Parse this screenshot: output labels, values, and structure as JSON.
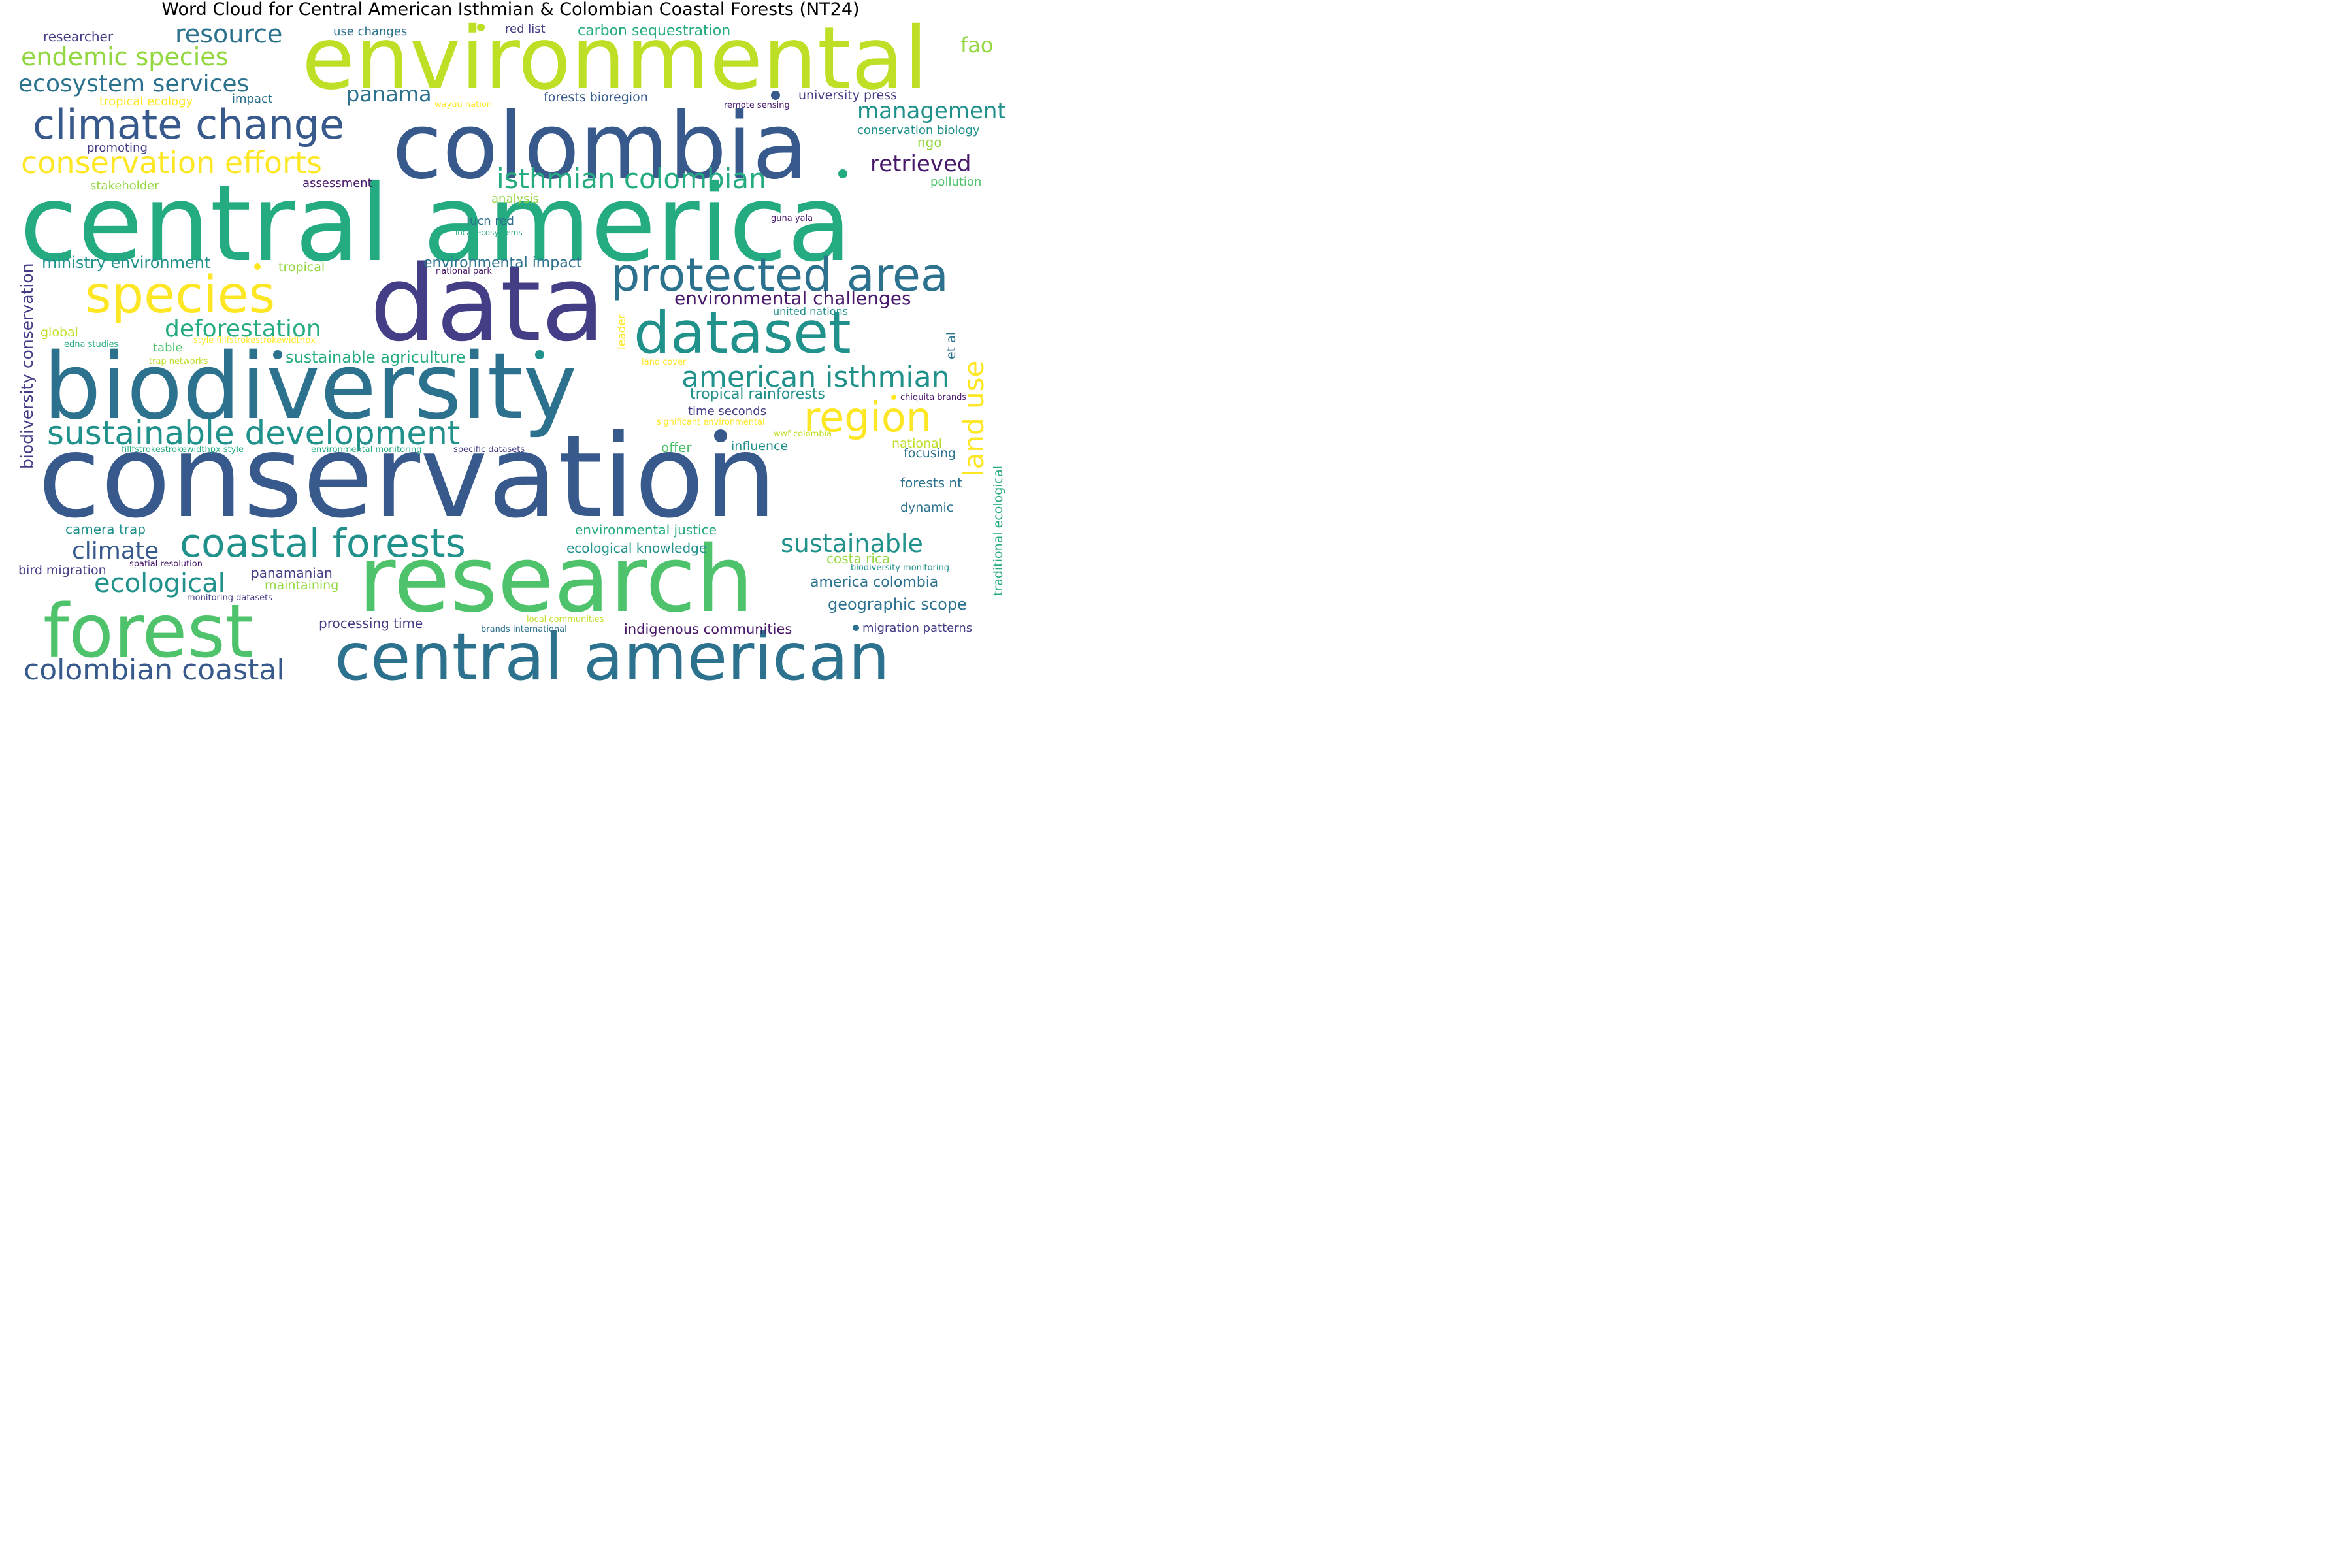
{
  "title": "Word Cloud for Central American Isthmian & Colombian Coastal Forests (NT24)",
  "colors": {
    "dark_purple": "#48186a",
    "indigo": "#433e85",
    "slate_blue": "#38598c",
    "blue_teal": "#2c728e",
    "teal": "#21918c",
    "sea_green": "#25ab82",
    "green": "#4ec36b",
    "lime": "#93d741",
    "yellow_green": "#bddf26",
    "yellow": "#fde725"
  },
  "words": [
    {
      "text": "environmental",
      "color": "yellow_green"
    },
    {
      "text": "colombia",
      "color": "slate_blue"
    },
    {
      "text": "central america",
      "color": "sea_green"
    },
    {
      "text": "data",
      "color": "indigo"
    },
    {
      "text": "biodiversity",
      "color": "blue_teal"
    },
    {
      "text": "conservation",
      "color": "slate_blue"
    },
    {
      "text": "research",
      "color": "green"
    },
    {
      "text": "forest",
      "color": "green"
    },
    {
      "text": "central american",
      "color": "blue_teal"
    },
    {
      "text": "dataset",
      "color": "teal"
    },
    {
      "text": "protected area",
      "color": "blue_teal"
    },
    {
      "text": "species",
      "color": "yellow"
    },
    {
      "text": "climate change",
      "color": "slate_blue"
    },
    {
      "text": "sustainable development",
      "color": "teal"
    },
    {
      "text": "coastal forests",
      "color": "teal"
    },
    {
      "text": "region",
      "color": "yellow"
    },
    {
      "text": "conservation efforts",
      "color": "yellow"
    },
    {
      "text": "isthmian colombian",
      "color": "sea_green"
    },
    {
      "text": "american isthmian",
      "color": "teal"
    },
    {
      "text": "colombian coastal",
      "color": "slate_blue"
    },
    {
      "text": "resource",
      "color": "blue_teal"
    },
    {
      "text": "endemic species",
      "color": "lime"
    },
    {
      "text": "ecosystem services",
      "color": "blue_teal"
    },
    {
      "text": "deforestation",
      "color": "sea_green"
    },
    {
      "text": "sustainable",
      "color": "teal"
    },
    {
      "text": "ecological",
      "color": "teal"
    },
    {
      "text": "climate",
      "color": "slate_blue"
    },
    {
      "text": "land use",
      "color": "yellow"
    },
    {
      "text": "management",
      "color": "teal"
    },
    {
      "text": "retrieved",
      "color": "dark_purple"
    },
    {
      "text": "panama",
      "color": "blue_teal"
    },
    {
      "text": "fao",
      "color": "lime"
    },
    {
      "text": "environmental challenges",
      "color": "dark_purple"
    },
    {
      "text": "biodiversity conservation",
      "color": "indigo"
    },
    {
      "text": "ministry environment",
      "color": "teal"
    },
    {
      "text": "sustainable agriculture",
      "color": "sea_green"
    },
    {
      "text": "carbon sequestration",
      "color": "sea_green"
    },
    {
      "text": "environmental impact",
      "color": "blue_teal"
    },
    {
      "text": "tropical rainforests",
      "color": "teal"
    },
    {
      "text": "researcher",
      "color": "indigo"
    },
    {
      "text": "use changes",
      "color": "blue_teal"
    },
    {
      "text": "red list",
      "color": "indigo"
    },
    {
      "text": "tropical ecology",
      "color": "yellow"
    },
    {
      "text": "impact",
      "color": "blue_teal"
    },
    {
      "text": "forests bioregion",
      "color": "slate_blue"
    },
    {
      "text": "university press",
      "color": "indigo"
    },
    {
      "text": "wayúu nation",
      "color": "yellow"
    },
    {
      "text": "remote sensing",
      "color": "dark_purple"
    },
    {
      "text": "conservation biology",
      "color": "teal"
    },
    {
      "text": "promoting",
      "color": "indigo"
    },
    {
      "text": "ngo",
      "color": "lime"
    },
    {
      "text": "stakeholder",
      "color": "lime"
    },
    {
      "text": "assessment",
      "color": "dark_purple"
    },
    {
      "text": "pollution",
      "color": "green"
    },
    {
      "text": "analysis",
      "color": "lime"
    },
    {
      "text": "iucn red",
      "color": "blue_teal"
    },
    {
      "text": "local ecosystems",
      "color": "sea_green"
    },
    {
      "text": "guna yala",
      "color": "dark_purple"
    },
    {
      "text": "tropical",
      "color": "lime"
    },
    {
      "text": "national park",
      "color": "dark_purple"
    },
    {
      "text": "leader",
      "color": "yellow"
    },
    {
      "text": "united nations",
      "color": "teal"
    },
    {
      "text": "et al",
      "color": "blue_teal"
    },
    {
      "text": "global",
      "color": "yellow_green"
    },
    {
      "text": "table",
      "color": "green"
    },
    {
      "text": "style fillfstrokestrokewidthpx",
      "color": "yellow"
    },
    {
      "text": "edna studies",
      "color": "sea_green"
    },
    {
      "text": "trap networks",
      "color": "yellow_green"
    },
    {
      "text": "land cover",
      "color": "yellow"
    },
    {
      "text": "time seconds",
      "color": "indigo"
    },
    {
      "text": "chiquita brands",
      "color": "dark_purple"
    },
    {
      "text": "significant environmental",
      "color": "yellow"
    },
    {
      "text": "wwf colombia",
      "color": "yellow_green"
    },
    {
      "text": "traditional ecological",
      "color": "sea_green"
    },
    {
      "text": "fillfstrokestrokewidthpx style",
      "color": "sea_green"
    },
    {
      "text": "environmental monitoring",
      "color": "sea_green"
    },
    {
      "text": "specific datasets",
      "color": "indigo"
    },
    {
      "text": "offer",
      "color": "green"
    },
    {
      "text": "influence",
      "color": "teal"
    },
    {
      "text": "national",
      "color": "yellow_green"
    },
    {
      "text": "focusing",
      "color": "blue_teal"
    },
    {
      "text": "forests nt",
      "color": "blue_teal"
    },
    {
      "text": "dynamic",
      "color": "blue_teal"
    },
    {
      "text": "camera trap",
      "color": "teal"
    },
    {
      "text": "environmental justice",
      "color": "sea_green"
    },
    {
      "text": "ecological knowledge",
      "color": "teal"
    },
    {
      "text": "costa rica",
      "color": "lime"
    },
    {
      "text": "bird migration",
      "color": "indigo"
    },
    {
      "text": "spatial resolution",
      "color": "dark_purple"
    },
    {
      "text": "panamanian",
      "color": "indigo"
    },
    {
      "text": "maintaining",
      "color": "lime"
    },
    {
      "text": "monitoring datasets",
      "color": "indigo"
    },
    {
      "text": "biodiversity monitoring",
      "color": "teal"
    },
    {
      "text": "america colombia",
      "color": "blue_teal"
    },
    {
      "text": "geographic scope",
      "color": "blue_teal"
    },
    {
      "text": "processing time",
      "color": "indigo"
    },
    {
      "text": "local communities",
      "color": "yellow_green"
    },
    {
      "text": "brands international",
      "color": "blue_teal"
    },
    {
      "text": "indigenous communities",
      "color": "dark_purple"
    },
    {
      "text": "migration patterns",
      "color": "indigo"
    }
  ]
}
